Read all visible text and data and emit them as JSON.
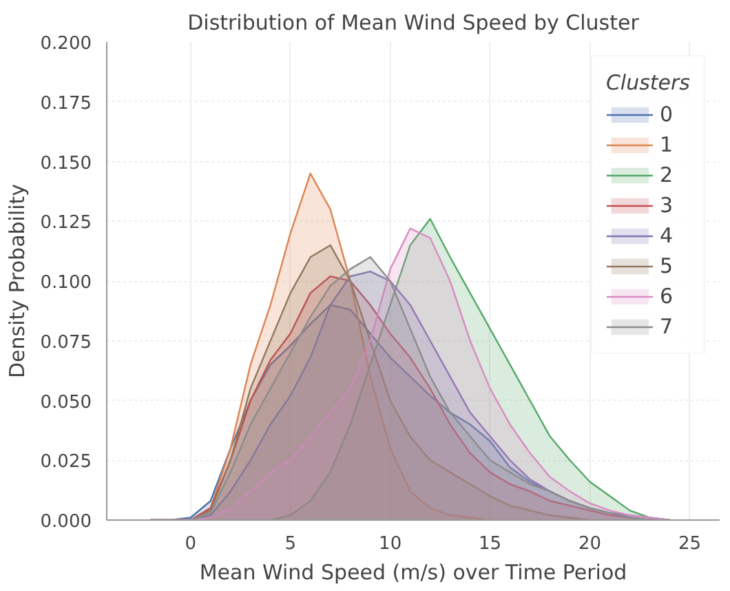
{
  "chart_data": {
    "type": "area",
    "title": "Distribution of Mean Wind Speed by Cluster",
    "xlabel": "Mean Wind Speed (m/s) over Time Period",
    "ylabel": "Density Probability",
    "legend_title": "Clusters",
    "x": [
      -2,
      -1,
      0,
      1,
      2,
      3,
      4,
      5,
      6,
      7,
      8,
      9,
      10,
      11,
      12,
      13,
      14,
      15,
      16,
      17,
      18,
      19,
      20,
      21,
      22,
      23,
      24
    ],
    "series": [
      {
        "name": "0",
        "color": "#4c72b0",
        "values": [
          0,
          0,
          0.001,
          0.008,
          0.03,
          0.05,
          0.065,
          0.073,
          0.082,
          0.09,
          0.088,
          0.078,
          0.068,
          0.06,
          0.052,
          0.045,
          0.04,
          0.033,
          0.022,
          0.016,
          0.012,
          0.008,
          0.005,
          0.003,
          0.002,
          0.001,
          0
        ]
      },
      {
        "name": "1",
        "color": "#dd8452",
        "values": [
          0,
          0,
          0,
          0.005,
          0.03,
          0.065,
          0.09,
          0.12,
          0.145,
          0.13,
          0.1,
          0.06,
          0.03,
          0.012,
          0.005,
          0.002,
          0.001,
          0,
          0,
          0,
          0,
          0,
          0,
          0,
          0,
          0,
          0
        ]
      },
      {
        "name": "2",
        "color": "#55a868",
        "values": [
          0,
          0,
          0,
          0,
          0,
          0,
          0,
          0.002,
          0.008,
          0.02,
          0.04,
          0.065,
          0.09,
          0.115,
          0.126,
          0.11,
          0.095,
          0.08,
          0.065,
          0.05,
          0.035,
          0.025,
          0.016,
          0.01,
          0.004,
          0.001,
          0
        ]
      },
      {
        "name": "3",
        "color": "#c44e52",
        "values": [
          0,
          0,
          0,
          0.005,
          0.025,
          0.05,
          0.067,
          0.078,
          0.095,
          0.102,
          0.1,
          0.09,
          0.078,
          0.068,
          0.055,
          0.04,
          0.028,
          0.02,
          0.015,
          0.012,
          0.008,
          0.006,
          0.004,
          0.002,
          0.001,
          0,
          0
        ]
      },
      {
        "name": "4",
        "color": "#8172b3",
        "values": [
          0,
          0,
          0,
          0.002,
          0.012,
          0.025,
          0.04,
          0.052,
          0.068,
          0.09,
          0.102,
          0.104,
          0.1,
          0.09,
          0.075,
          0.06,
          0.045,
          0.035,
          0.025,
          0.017,
          0.012,
          0.008,
          0.005,
          0.003,
          0.001,
          0,
          0
        ]
      },
      {
        "name": "5",
        "color": "#937860",
        "values": [
          0,
          0,
          0,
          0.004,
          0.025,
          0.055,
          0.075,
          0.095,
          0.11,
          0.115,
          0.1,
          0.075,
          0.05,
          0.035,
          0.025,
          0.02,
          0.015,
          0.01,
          0.006,
          0.004,
          0.002,
          0.001,
          0,
          0,
          0,
          0,
          0
        ]
      },
      {
        "name": "6",
        "color": "#da8bc3",
        "values": [
          0,
          0,
          0,
          0.001,
          0.005,
          0.012,
          0.02,
          0.025,
          0.035,
          0.045,
          0.055,
          0.075,
          0.105,
          0.122,
          0.118,
          0.1,
          0.075,
          0.055,
          0.04,
          0.028,
          0.018,
          0.012,
          0.007,
          0.004,
          0.002,
          0.001,
          0
        ]
      },
      {
        "name": "7",
        "color": "#8c8c8c",
        "values": [
          0,
          0,
          0,
          0.003,
          0.02,
          0.04,
          0.055,
          0.07,
          0.085,
          0.098,
          0.105,
          0.11,
          0.1,
          0.08,
          0.06,
          0.045,
          0.035,
          0.025,
          0.02,
          0.015,
          0.012,
          0.008,
          0.005,
          0.003,
          0.001,
          0,
          0
        ]
      }
    ],
    "xlim": [
      -4.2,
      26.5
    ],
    "ylim": [
      0,
      0.2
    ],
    "xticks": [
      0,
      5,
      10,
      15,
      20,
      25
    ],
    "yticks": [
      {
        "value": 0,
        "label": "0.000"
      },
      {
        "value": 0.025,
        "label": "0.025"
      },
      {
        "value": 0.05,
        "label": "0.050"
      },
      {
        "value": 0.075,
        "label": "0.075"
      },
      {
        "value": 0.1,
        "label": "0.100"
      },
      {
        "value": 0.125,
        "label": "0.125"
      },
      {
        "value": 0.15,
        "label": "0.150"
      },
      {
        "value": 0.175,
        "label": "0.175"
      },
      {
        "value": 0.2,
        "label": "0.200"
      }
    ],
    "grid": true,
    "legend": "top right"
  }
}
